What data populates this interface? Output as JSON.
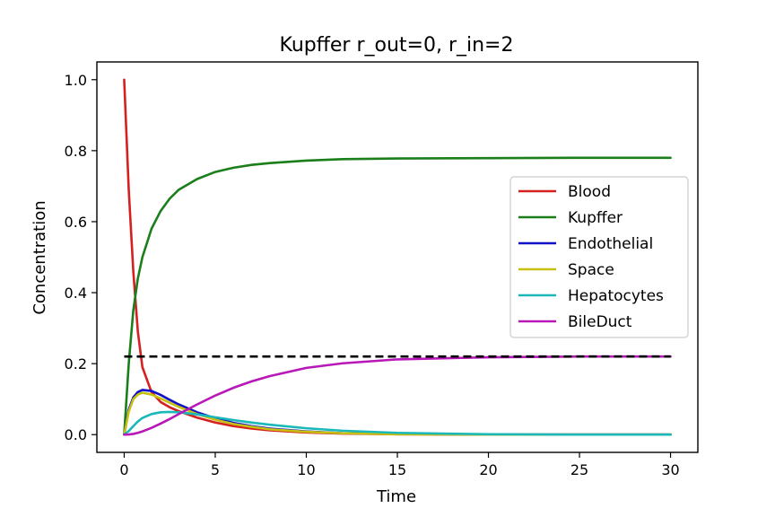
{
  "chart_data": {
    "type": "line",
    "title": "Kupffer r_out=0, r_in=2",
    "xlabel": "Time",
    "ylabel": "Concentration",
    "xlim": [
      -1.5,
      31.5
    ],
    "ylim": [
      -0.05,
      1.05
    ],
    "xticks": [
      0,
      5,
      10,
      15,
      20,
      25,
      30
    ],
    "xtick_labels": [
      "0",
      "5",
      "10",
      "15",
      "20",
      "25",
      "30"
    ],
    "yticks": [
      0.0,
      0.2,
      0.4,
      0.6,
      0.8,
      1.0
    ],
    "ytick_labels": [
      "0.0",
      "0.2",
      "0.4",
      "0.6",
      "0.8",
      "1.0"
    ],
    "grid": false,
    "legend_position": "center-right",
    "reference_line": {
      "y": 0.22,
      "x_range": [
        0,
        30
      ],
      "style": "dashed",
      "color": "#000000"
    },
    "x": [
      0,
      0.25,
      0.5,
      0.75,
      1,
      1.5,
      2,
      2.5,
      3,
      4,
      5,
      6,
      7,
      8,
      10,
      12,
      15,
      20,
      25,
      30
    ],
    "series": [
      {
        "name": "Blood",
        "color": "#d62020",
        "values": [
          1.0,
          0.69,
          0.46,
          0.29,
          0.19,
          0.12,
          0.092,
          0.077,
          0.066,
          0.048,
          0.034,
          0.024,
          0.017,
          0.012,
          0.006,
          0.003,
          0.001,
          0.0,
          0.0,
          0.0
        ]
      },
      {
        "name": "Kupffer",
        "color": "#1a7f1a",
        "values": [
          0.0,
          0.2,
          0.35,
          0.44,
          0.5,
          0.58,
          0.63,
          0.665,
          0.69,
          0.72,
          0.74,
          0.752,
          0.76,
          0.765,
          0.772,
          0.776,
          0.778,
          0.779,
          0.78,
          0.78
        ]
      },
      {
        "name": "Endothelial",
        "color": "#1010c8",
        "values": [
          0.0,
          0.07,
          0.105,
          0.12,
          0.126,
          0.123,
          0.112,
          0.098,
          0.085,
          0.063,
          0.046,
          0.033,
          0.024,
          0.017,
          0.009,
          0.004,
          0.002,
          0.0,
          0.0,
          0.0
        ]
      },
      {
        "name": "Space",
        "color": "#c8c010",
        "values": [
          0.0,
          0.065,
          0.1,
          0.113,
          0.118,
          0.113,
          0.102,
          0.09,
          0.078,
          0.058,
          0.042,
          0.03,
          0.022,
          0.015,
          0.008,
          0.004,
          0.001,
          0.0,
          0.0,
          0.0
        ]
      },
      {
        "name": "Hepatocytes",
        "color": "#1ab8b8",
        "values": [
          0.0,
          0.01,
          0.024,
          0.037,
          0.047,
          0.058,
          0.063,
          0.064,
          0.063,
          0.057,
          0.049,
          0.041,
          0.034,
          0.028,
          0.018,
          0.011,
          0.005,
          0.001,
          0.0,
          0.0
        ]
      },
      {
        "name": "BileDuct",
        "color": "#b818b8",
        "values": [
          0.0,
          0.0005,
          0.002,
          0.005,
          0.009,
          0.019,
          0.031,
          0.044,
          0.058,
          0.085,
          0.11,
          0.132,
          0.15,
          0.165,
          0.188,
          0.201,
          0.212,
          0.218,
          0.22,
          0.22
        ]
      }
    ]
  }
}
